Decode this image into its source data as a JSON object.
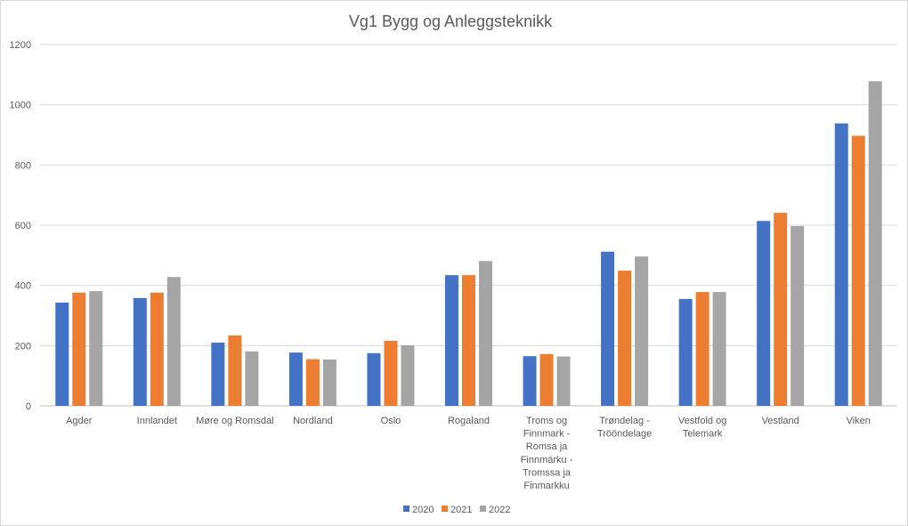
{
  "chart_data": {
    "type": "bar",
    "title": "Vg1 Bygg og Anleggsteknikk",
    "xlabel": "",
    "ylabel": "",
    "ylim": [
      0,
      1200
    ],
    "yticks": [
      0,
      200,
      400,
      600,
      800,
      1000,
      1200
    ],
    "grid": true,
    "legend_position": "bottom",
    "categories": [
      "Agder",
      "Innlandet",
      "Møre og Romsdal",
      "Nordland",
      "Oslo",
      "Rogaland",
      "Troms og Finnmark - Romsa ja Finnmárku - Tromssa ja Finmarkku",
      "Trøndelag - Trööndelage",
      "Vestfold og Telemark",
      "Vestland",
      "Viken"
    ],
    "category_lines": [
      [
        "Agder"
      ],
      [
        "Innlandet"
      ],
      [
        "Møre og Romsdal"
      ],
      [
        "Nordland"
      ],
      [
        "Oslo"
      ],
      [
        "Rogaland"
      ],
      [
        "Troms og",
        "Finnmark -",
        "Romsa ja",
        "Finnmárku -",
        "Tromssa ja",
        "Finmarkku"
      ],
      [
        "Trøndelag -",
        "Trööndelage"
      ],
      [
        "Vestfold og",
        "Telemark"
      ],
      [
        "Vestland"
      ],
      [
        "Viken"
      ]
    ],
    "series": [
      {
        "name": "2020",
        "color": "#4472c4",
        "values": [
          343,
          358,
          210,
          177,
          175,
          434,
          165,
          512,
          355,
          614,
          938
        ]
      },
      {
        "name": "2021",
        "color": "#ed7d31",
        "values": [
          376,
          376,
          234,
          155,
          216,
          434,
          172,
          449,
          378,
          641,
          897
        ]
      },
      {
        "name": "2022",
        "color": "#a5a5a5",
        "values": [
          381,
          428,
          181,
          154,
          201,
          481,
          164,
          496,
          378,
          597,
          1078
        ]
      }
    ]
  }
}
